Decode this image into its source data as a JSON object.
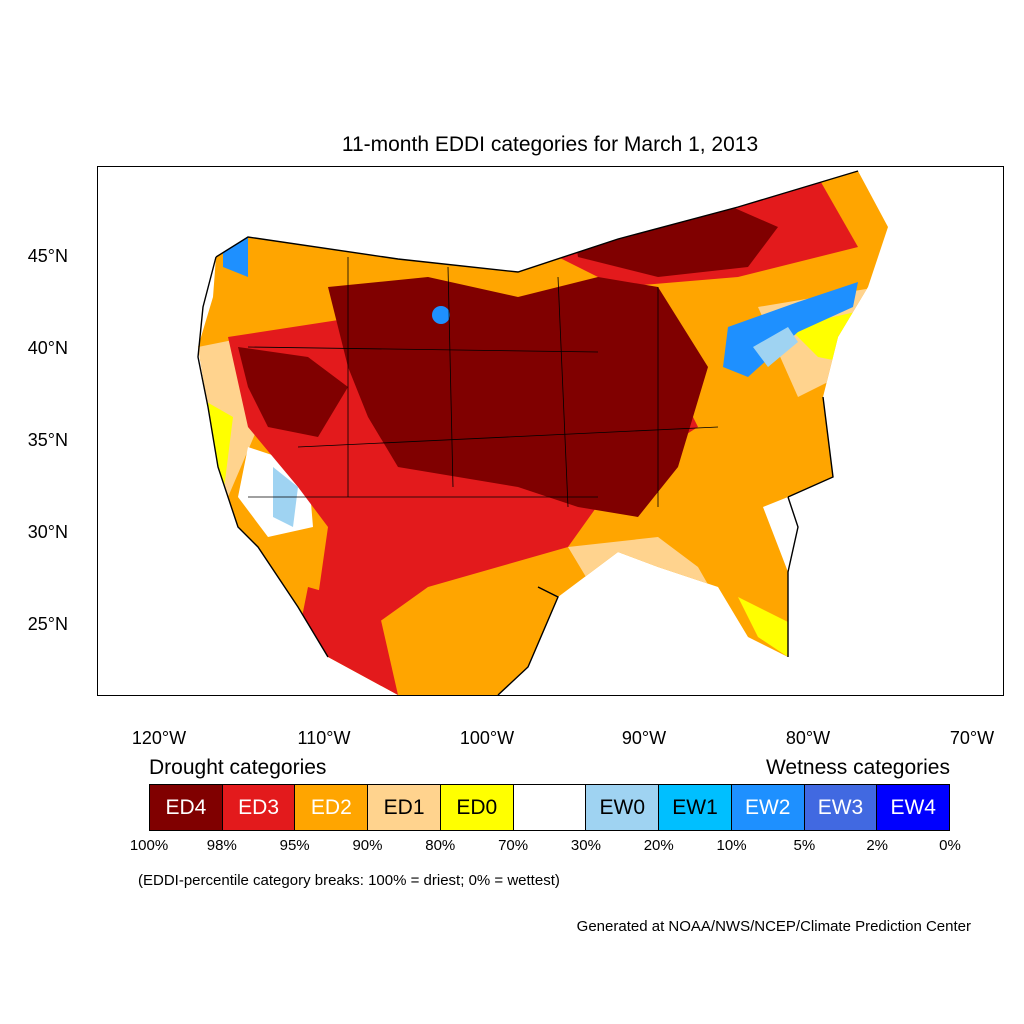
{
  "title": "11-month EDDI categories for March 1, 2013",
  "latitude_labels": [
    "45°N",
    "40°N",
    "35°N",
    "30°N",
    "25°N"
  ],
  "longitude_labels": [
    "120°W",
    "110°W",
    "100°W",
    "90°W",
    "80°W",
    "70°W"
  ],
  "legend": {
    "drought_heading": "Drought categories",
    "wetness_heading": "Wetness categories",
    "categories": [
      {
        "label": "ED4",
        "color": "#800000",
        "text_color": "#ffffff"
      },
      {
        "label": "ED3",
        "color": "#e31a1c",
        "text_color": "#ffffff"
      },
      {
        "label": "ED2",
        "color": "#ffa500",
        "text_color": "#ffffff"
      },
      {
        "label": "ED1",
        "color": "#ffd38e",
        "text_color": "#000000"
      },
      {
        "label": "ED0",
        "color": "#ffff00",
        "text_color": "#000000"
      },
      {
        "label": "",
        "color": "#ffffff",
        "text_color": "#000000"
      },
      {
        "label": "EW0",
        "color": "#9fd3f2",
        "text_color": "#000000"
      },
      {
        "label": "EW1",
        "color": "#00bfff",
        "text_color": "#000000"
      },
      {
        "label": "EW2",
        "color": "#1e90ff",
        "text_color": "#ffffff"
      },
      {
        "label": "EW3",
        "color": "#4169e1",
        "text_color": "#ffffff"
      },
      {
        "label": "EW4",
        "color": "#0000ff",
        "text_color": "#ffffff"
      }
    ],
    "percentile_breaks": [
      "100%",
      "98%",
      "95%",
      "90%",
      "80%",
      "70%",
      "30%",
      "20%",
      "10%",
      "5%",
      "2%",
      "0%"
    ]
  },
  "note": "(EDDI-percentile category breaks: 100% = driest; 0% = wettest)",
  "credit": "Generated at NOAA/NWS/NCEP/Climate Prediction Center"
}
